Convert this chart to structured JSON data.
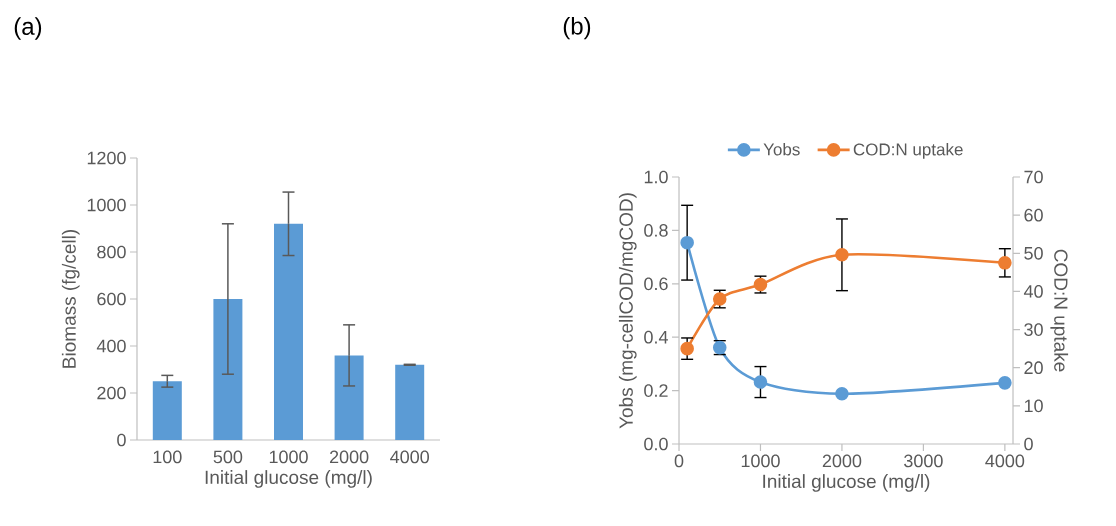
{
  "chart_data": [
    {
      "type": "bar",
      "title": "(a)",
      "xlabel": "Initial glucose (mg/l)",
      "ylabel": "Biomass (fg/cell)",
      "categories": [
        "100",
        "500",
        "1000",
        "2000",
        "4000"
      ],
      "values": [
        250,
        600,
        920,
        360,
        320
      ],
      "errors": [
        25,
        320,
        135,
        130,
        2
      ],
      "color": "#5b9bd5",
      "ylim": [
        0,
        1200
      ],
      "yticks": [
        0,
        200,
        400,
        600,
        800,
        1000,
        1200
      ]
    },
    {
      "type": "line",
      "title": "(b)",
      "xlabel": "Initial glucose (mg/l)",
      "ylabel": "Yobs (mg-cellCOD/mgCOD)",
      "y2label": "COD:N uptake",
      "x": [
        100,
        500,
        1000,
        2000,
        4000
      ],
      "series": [
        {
          "name": "Yobs",
          "color": "#5b9bd5",
          "values": [
            0.754,
            0.361,
            0.232,
            0.188,
            0.229
          ],
          "errors": [
            0.14,
            0.026,
            0.058,
            null,
            null
          ]
        },
        {
          "name": "COD:N uptake",
          "color": "#ed7d31",
          "axis": "y2",
          "values": [
            25.0,
            38.0,
            41.8,
            49.6,
            47.5
          ],
          "errors": [
            2.8,
            2.3,
            2.2,
            9.4,
            3.7
          ]
        }
      ],
      "xlim": [
        0,
        4100
      ],
      "xticks": [
        0,
        1000,
        2000,
        3000,
        4000
      ],
      "ylim": [
        0,
        1
      ],
      "yticks": [
        {
          "value": 0,
          "label": "0.0"
        },
        {
          "value": 0.2,
          "label": "0.2"
        },
        {
          "value": 0.4,
          "label": "0.4"
        },
        {
          "value": 0.6,
          "label": "0.6"
        },
        {
          "value": 0.8,
          "label": "0.8"
        },
        {
          "value": 1,
          "label": "1.0"
        }
      ],
      "y2lim": [
        0,
        70
      ],
      "y2ticks": [
        0,
        10,
        20,
        30,
        40,
        50,
        60,
        70
      ],
      "marker": "circle",
      "line_style": "solid",
      "legend": "top"
    }
  ]
}
